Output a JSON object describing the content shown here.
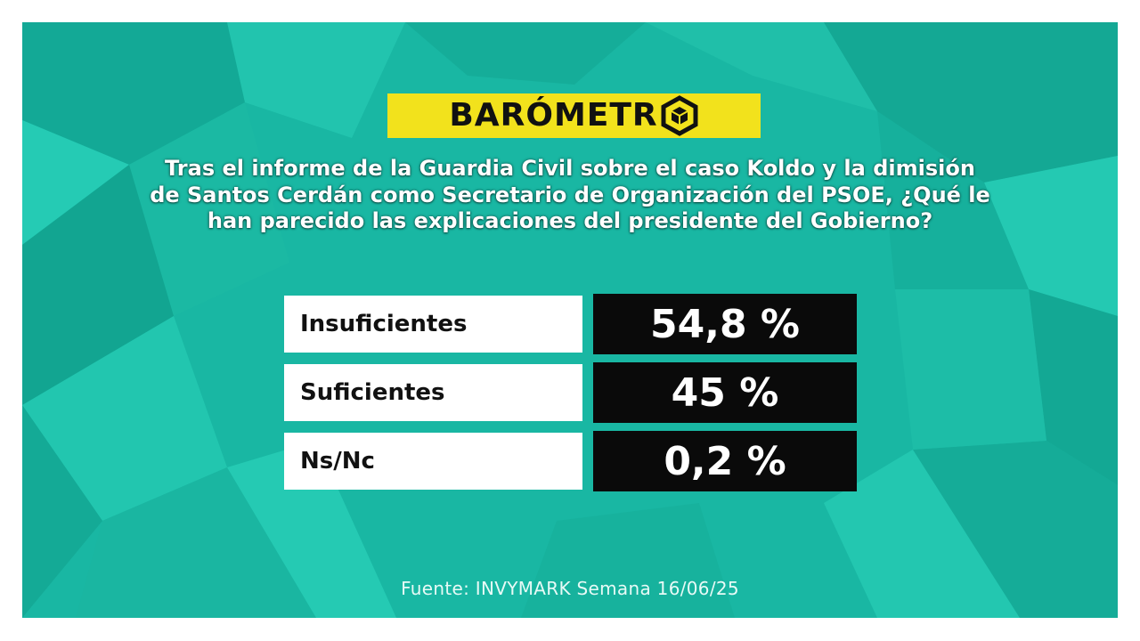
{
  "brand": {
    "logo_text": "BARÓMETR",
    "logo_icon": "hexagon-cube-icon",
    "bar_color": "#f2e21c"
  },
  "question": "Tras el informe de la Guardia Civil sobre el caso Koldo y la dimisión de Santos Cerdán como Secretario de Organización del PSOE, ¿Qué le han parecido las explicaciones del presidente del Gobierno?",
  "chart_data": {
    "type": "table",
    "title": "",
    "categories": [
      "Insuficientes",
      "Suficientes",
      "Ns/Nc"
    ],
    "values": [
      54.8,
      45,
      0.2
    ],
    "value_labels": [
      "54,8 %",
      "45 %",
      "0,2 %"
    ],
    "unit": "%"
  },
  "source": "Fuente: INVYMARK Semana 16/06/25",
  "colors": {
    "background": "#19b7a3",
    "label_box": "#ffffff",
    "value_box": "#0a0a0a"
  }
}
